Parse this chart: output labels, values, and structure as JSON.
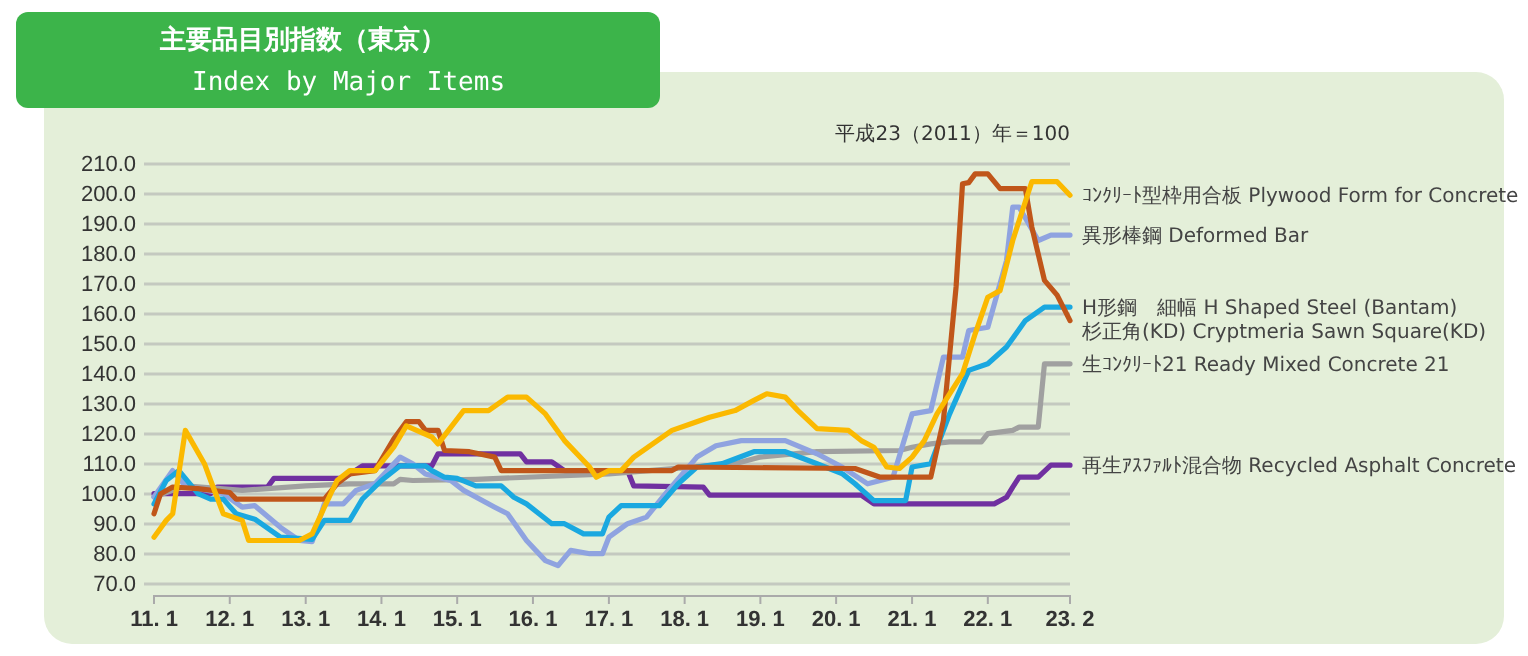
{
  "chart_data": {
    "type": "line",
    "title": "主要品目別指数（東京）",
    "subtitle": "Index by Major Items",
    "annotations": [
      "平成23（2011）年＝100"
    ],
    "xlim": [
      "2011-01",
      "2023-02"
    ],
    "xticks": [
      {
        "value": "2011-01",
        "label": "11. 1"
      },
      {
        "value": "2012-01",
        "label": "12. 1"
      },
      {
        "value": "2013-01",
        "label": "13. 1"
      },
      {
        "value": "2014-01",
        "label": "14. 1"
      },
      {
        "value": "2015-01",
        "label": "15. 1"
      },
      {
        "value": "2016-01",
        "label": "16. 1"
      },
      {
        "value": "2017-01",
        "label": "17. 1"
      },
      {
        "value": "2018-01",
        "label": "18. 1"
      },
      {
        "value": "2019-01",
        "label": "19. 1"
      },
      {
        "value": "2020-01",
        "label": "20. 1"
      },
      {
        "value": "2021-01",
        "label": "21. 1"
      },
      {
        "value": "2022-01",
        "label": "22. 1"
      },
      {
        "value": "2023-02",
        "label": "23. 2"
      }
    ],
    "ylim": [
      70,
      210
    ],
    "yticks": [
      {
        "value": 70,
        "label": "70.0"
      },
      {
        "value": 80,
        "label": "80.0"
      },
      {
        "value": 90,
        "label": "90.0"
      },
      {
        "value": 100,
        "label": "100.0"
      },
      {
        "value": 110,
        "label": "110.0"
      },
      {
        "value": 120,
        "label": "120.0"
      },
      {
        "value": 130,
        "label": "130.0"
      },
      {
        "value": 140,
        "label": "140.0"
      },
      {
        "value": 150,
        "label": "150.0"
      },
      {
        "value": 160,
        "label": "160.0"
      },
      {
        "value": 170,
        "label": "170.0"
      },
      {
        "value": 180,
        "label": "180.0"
      },
      {
        "value": 190,
        "label": "190.0"
      },
      {
        "value": 200,
        "label": "200.0"
      },
      {
        "value": 210,
        "label": "210.0"
      }
    ],
    "grid": "y",
    "legend": false,
    "marker": "none",
    "line_style": "solid",
    "series": [
      {
        "name": "再生ｱｽﾌｧﾙﾄ混合物 Recycled Asphalt Concrete",
        "color": "#7030a0",
        "x": [
          "2011-01",
          "2011-10",
          "2011-11",
          "2012-07",
          "2012-08",
          "2013-07",
          "2013-10",
          "2014-09",
          "2014-10",
          "2015-11",
          "2015-12",
          "2016-04",
          "2016-06",
          "2017-04",
          "2017-05",
          "2018-04",
          "2018-05",
          "2020-05",
          "2020-07",
          "2022-02",
          "2022-04",
          "2022-05",
          "2022-06",
          "2022-09",
          "2022-11",
          "2023-02"
        ],
        "values": [
          100.1,
          100.1,
          102.3,
          102.3,
          105.2,
          105.2,
          109.4,
          109.4,
          113.4,
          113.4,
          110.7,
          110.7,
          107.8,
          107.8,
          102.7,
          102.3,
          99.6,
          99.6,
          96.7,
          96.7,
          98.9,
          102.3,
          105.6,
          105.6,
          109.6,
          109.6
        ]
      },
      {
        "name": "生ｺﾝｸﾘｰﾄ21 Ready Mixed Concrete 21",
        "color": "#a0a0a0",
        "x": [
          "2011-01",
          "2011-06",
          "2012-03",
          "2013-01",
          "2013-08",
          "2014-03",
          "2014-04",
          "2014-06",
          "2015-04",
          "2017-01",
          "2018-09",
          "2019-01",
          "2019-10",
          "2020-11",
          "2021-01",
          "2021-04",
          "2021-07",
          "2021-12",
          "2022-01",
          "2022-05",
          "2022-06",
          "2022-09",
          "2022-10",
          "2023-02"
        ],
        "values": [
          99.0,
          102.7,
          101.2,
          102.7,
          103.4,
          103.4,
          104.9,
          104.5,
          104.9,
          106.7,
          110.1,
          112.3,
          114.1,
          114.5,
          115.6,
          116.7,
          117.4,
          117.4,
          120.1,
          121.2,
          122.3,
          122.3,
          143.4,
          143.4
        ]
      },
      {
        "name": "異形棒鋼 Deformed Bar",
        "color": "#8fa3e0",
        "x": [
          "2011-01",
          "2011-04",
          "2011-06",
          "2011-12",
          "2012-03",
          "2012-05",
          "2012-09",
          "2012-12",
          "2013-02",
          "2013-04",
          "2013-07",
          "2013-09",
          "2013-12",
          "2014-04",
          "2014-06",
          "2014-08",
          "2014-12",
          "2015-02",
          "2015-07",
          "2015-09",
          "2015-12",
          "2016-03",
          "2016-05",
          "2016-07",
          "2016-10",
          "2016-12",
          "2017-01",
          "2017-04",
          "2017-07",
          "2017-10",
          "2018-03",
          "2018-06",
          "2018-10",
          "2019-05",
          "2019-10",
          "2020-02",
          "2020-06",
          "2020-10",
          "2021-01",
          "2021-04",
          "2021-06",
          "2021-09",
          "2021-10",
          "2022-01",
          "2022-04",
          "2022-05",
          "2022-06",
          "2022-09",
          "2022-11",
          "2023-02"
        ],
        "values": [
          99.0,
          107.8,
          102.7,
          100.1,
          95.6,
          96.1,
          88.9,
          84.5,
          84.1,
          96.7,
          96.7,
          101.2,
          103.4,
          112.3,
          110.1,
          106.7,
          104.5,
          101.2,
          95.6,
          93.4,
          84.5,
          77.8,
          76.1,
          81.2,
          80.1,
          80.1,
          85.6,
          90.1,
          92.3,
          100.1,
          112.3,
          116.1,
          117.8,
          117.8,
          113.4,
          108.9,
          103.4,
          105.6,
          126.7,
          127.8,
          145.6,
          145.6,
          154.5,
          155.6,
          177.8,
          195.6,
          195.6,
          184.5,
          186.3,
          186.3
        ]
      },
      {
        "name": "H形鋼　細幅 H Shaped Steel (Bantam)",
        "color": "#1aa8e0",
        "x": [
          "2011-01",
          "2011-03",
          "2011-05",
          "2011-08",
          "2011-10",
          "2011-12",
          "2012-02",
          "2012-05",
          "2012-09",
          "2013-02",
          "2013-04",
          "2013-08",
          "2013-10",
          "2014-01",
          "2014-04",
          "2014-08",
          "2014-09",
          "2014-11",
          "2015-01",
          "2015-04",
          "2015-08",
          "2015-10",
          "2015-12",
          "2016-04",
          "2016-06",
          "2016-09",
          "2016-12",
          "2017-01",
          "2017-03",
          "2017-09",
          "2017-12",
          "2018-03",
          "2018-07",
          "2018-12",
          "2019-05",
          "2019-10",
          "2020-02",
          "2020-04",
          "2020-07",
          "2020-12",
          "2021-01",
          "2021-04",
          "2021-07",
          "2021-10",
          "2022-01",
          "2022-04",
          "2022-07",
          "2022-10",
          "2023-02"
        ],
        "values": [
          96.7,
          104.5,
          107.8,
          100.1,
          98.3,
          98.3,
          93.4,
          91.6,
          85.6,
          84.9,
          91.2,
          91.2,
          98.3,
          104.5,
          109.4,
          109.4,
          107.8,
          105.6,
          105.2,
          102.7,
          102.7,
          98.9,
          96.7,
          90.1,
          90.1,
          86.7,
          86.7,
          92.3,
          96.1,
          96.1,
          103.4,
          109.0,
          110.1,
          114.1,
          114.1,
          110.1,
          106.7,
          103.4,
          97.8,
          97.8,
          109.0,
          110.1,
          126.7,
          141.2,
          143.4,
          149.0,
          157.8,
          162.3,
          162.3
        ]
      },
      {
        "name": "杉正角(KD) Cryptmeria Sawn Square(KD)",
        "color": "#c0561a",
        "x": [
          "2011-01",
          "2011-02",
          "2011-04",
          "2011-08",
          "2012-01",
          "2012-02",
          "2013-04",
          "2013-06",
          "2013-08",
          "2013-12",
          "2014-03",
          "2014-05",
          "2014-07",
          "2014-08",
          "2014-10",
          "2014-11",
          "2015-03",
          "2015-07",
          "2015-08",
          "2017-11",
          "2017-12",
          "2020-04",
          "2020-08",
          "2021-04",
          "2021-06",
          "2021-08",
          "2021-09",
          "2021-10",
          "2021-11",
          "2022-01",
          "2022-03",
          "2022-07",
          "2022-08",
          "2022-10",
          "2022-12",
          "2023-02"
        ],
        "values": [
          93.4,
          100.0,
          102.3,
          101.8,
          100.5,
          98.3,
          98.3,
          103.4,
          106.7,
          107.8,
          118.3,
          124.1,
          124.1,
          121.2,
          121.2,
          114.5,
          114.1,
          112.3,
          107.8,
          107.8,
          109.0,
          108.5,
          105.6,
          105.6,
          124.5,
          169.0,
          203.4,
          203.8,
          206.7,
          206.7,
          201.8,
          201.8,
          189.0,
          171.2,
          166.3,
          157.8
        ]
      },
      {
        "name": "ｺﾝｸﾘｰﾄ型枠用合板 Plywood Form for Concrete",
        "color": "#fbb900",
        "x": [
          "2011-01",
          "2011-03",
          "2011-04",
          "2011-06",
          "2011-09",
          "2011-10",
          "2011-12",
          "2012-03",
          "2012-04",
          "2012-12",
          "2013-02",
          "2013-04",
          "2013-06",
          "2013-08",
          "2013-12",
          "2014-03",
          "2014-05",
          "2014-09",
          "2014-10",
          "2015-02",
          "2015-06",
          "2015-09",
          "2015-12",
          "2016-03",
          "2016-06",
          "2016-10",
          "2016-11",
          "2017-01",
          "2017-03",
          "2017-05",
          "2017-11",
          "2018-02",
          "2018-05",
          "2018-09",
          "2018-12",
          "2019-02",
          "2019-05",
          "2019-07",
          "2019-10",
          "2020-03",
          "2020-05",
          "2020-07",
          "2020-09",
          "2020-11",
          "2021-01",
          "2021-03",
          "2021-05",
          "2021-09",
          "2021-11",
          "2022-01",
          "2022-03",
          "2022-05",
          "2022-08",
          "2022-12",
          "2023-02"
        ],
        "values": [
          85.6,
          91.2,
          93.4,
          121.2,
          110.1,
          104.5,
          93.4,
          91.2,
          84.5,
          84.5,
          86.7,
          95.6,
          104.5,
          107.8,
          107.8,
          115.6,
          122.7,
          119.0,
          116.7,
          127.8,
          127.8,
          132.3,
          132.3,
          126.7,
          117.8,
          108.9,
          105.6,
          107.8,
          107.8,
          112.3,
          121.2,
          123.4,
          125.6,
          127.8,
          131.2,
          133.4,
          132.3,
          127.8,
          121.8,
          121.2,
          117.8,
          115.6,
          109.0,
          108.5,
          112.3,
          117.8,
          126.7,
          140.1,
          153.4,
          165.6,
          167.8,
          184.5,
          204.1,
          204.1,
          199.6
        ]
      }
    ]
  }
}
